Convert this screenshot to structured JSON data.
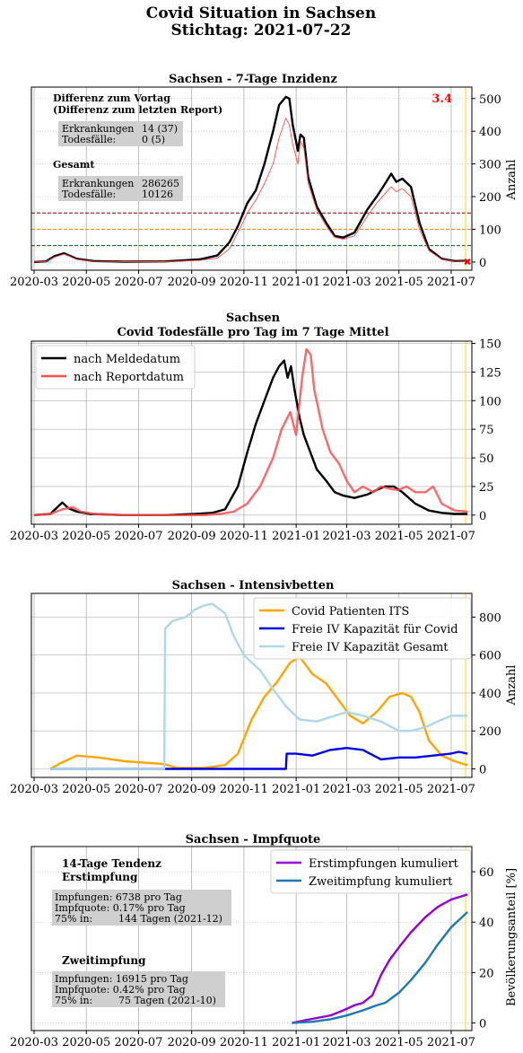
{
  "page": {
    "title_line1": "Covid Situation in Sachsen",
    "title_line2": "Stichtag: 2021-07-22"
  },
  "x_ticks": [
    "2020-03",
    "2020-05",
    "2020-07",
    "2020-09",
    "2020-11",
    "2021-01",
    "2021-03",
    "2021-05",
    "2021-07"
  ],
  "colors": {
    "black": "#000000",
    "red": "#ff4d4d",
    "orange": "#ffa500",
    "blue": "#0000e6",
    "lightblue": "#add8e6",
    "purple": "#9400d3",
    "steel": "#1f77b4",
    "gold": "#ffd700"
  },
  "chart_data": [
    {
      "type": "line",
      "title": "Sachsen - 7-Tage Inzidenz",
      "ylabel": "Anzahl",
      "ylim": [
        -25,
        535
      ],
      "yticks": [
        "0",
        "100",
        "200",
        "300",
        "400",
        "500"
      ],
      "highlight_value": "3.4",
      "thresholds": [
        {
          "value": 150,
          "color": "#8b0000"
        },
        {
          "value": 100,
          "color": "#ff8c00"
        },
        {
          "value": 50,
          "color": "#006400"
        }
      ],
      "info": {
        "heading1": "Differenz zum Vortag",
        "heading2": "(Differenz zum letzten Report)",
        "erkr_label": "Erkrankungen",
        "erkr_value": "14 (37)",
        "tod_label": "Todesfälle:",
        "tod_value": "0 (5)",
        "gesamt": "Gesamt",
        "g_erkr_label": "Erkrankungen",
        "g_erkr_value": "286265",
        "g_tod_label": "Todesfälle:",
        "g_tod_value": "10126"
      },
      "series": [
        {
          "color": "#000000",
          "x": [
            "2020-03-01",
            "2020-03-15",
            "2020-03-25",
            "2020-04-05",
            "2020-04-20",
            "2020-05-10",
            "2020-06-15",
            "2020-08-01",
            "2020-09-10",
            "2020-10-01",
            "2020-10-15",
            "2020-10-25",
            "2020-11-05",
            "2020-11-15",
            "2020-11-25",
            "2020-12-05",
            "2020-12-12",
            "2020-12-20",
            "2020-12-24",
            "2020-12-28",
            "2021-01-03",
            "2021-01-06",
            "2021-01-10",
            "2021-01-15",
            "2021-01-25",
            "2021-02-05",
            "2021-02-15",
            "2021-02-25",
            "2021-03-10",
            "2021-03-25",
            "2021-04-05",
            "2021-04-15",
            "2021-04-22",
            "2021-04-28",
            "2021-05-05",
            "2021-05-15",
            "2021-05-25",
            "2021-06-05",
            "2021-06-20",
            "2021-07-05",
            "2021-07-20"
          ],
          "y": [
            0,
            2,
            18,
            27,
            10,
            3,
            1,
            2,
            8,
            20,
            60,
            110,
            180,
            220,
            300,
            400,
            480,
            505,
            500,
            420,
            340,
            390,
            380,
            260,
            170,
            120,
            80,
            75,
            90,
            160,
            200,
            240,
            270,
            245,
            255,
            230,
            120,
            40,
            10,
            3,
            4
          ]
        },
        {
          "color": "#ff4d4d",
          "x": [
            "2020-03-01",
            "2020-03-15",
            "2020-03-25",
            "2020-04-05",
            "2020-04-20",
            "2020-05-10",
            "2020-06-15",
            "2020-08-01",
            "2020-09-10",
            "2020-10-01",
            "2020-10-15",
            "2020-10-25",
            "2020-11-05",
            "2020-11-15",
            "2020-11-25",
            "2020-12-05",
            "2020-12-12",
            "2020-12-20",
            "2020-12-24",
            "2020-12-28",
            "2021-01-03",
            "2021-01-06",
            "2021-01-10",
            "2021-01-15",
            "2021-01-25",
            "2021-02-05",
            "2021-02-15",
            "2021-02-25",
            "2021-03-10",
            "2021-03-25",
            "2021-04-05",
            "2021-04-15",
            "2021-04-22",
            "2021-04-28",
            "2021-05-05",
            "2021-05-15",
            "2021-05-25",
            "2021-06-05",
            "2021-06-20",
            "2021-07-05",
            "2021-07-20"
          ],
          "y": [
            0,
            1,
            15,
            24,
            8,
            2,
            1,
            1,
            5,
            12,
            40,
            90,
            150,
            190,
            240,
            300,
            380,
            440,
            420,
            360,
            300,
            370,
            350,
            240,
            160,
            110,
            75,
            70,
            80,
            140,
            180,
            210,
            230,
            215,
            225,
            200,
            100,
            35,
            8,
            2,
            3
          ]
        }
      ]
    },
    {
      "type": "line",
      "title_line1": "Sachsen",
      "title_line2": "Covid Todesfälle pro Tag im 7 Tage Mittel",
      "ylim": [
        -8,
        152
      ],
      "yticks": [
        "0",
        "25",
        "50",
        "75",
        "100",
        "125",
        "150"
      ],
      "series": [
        {
          "name": "nach Meldedatum",
          "color": "#000000",
          "x": [
            "2020-03-01",
            "2020-03-20",
            "2020-04-03",
            "2020-04-10",
            "2020-04-20",
            "2020-05-05",
            "2020-06-15",
            "2020-08-01",
            "2020-09-05",
            "2020-09-25",
            "2020-10-10",
            "2020-10-25",
            "2020-11-05",
            "2020-11-15",
            "2020-11-25",
            "2020-12-05",
            "2020-12-12",
            "2020-12-18",
            "2020-12-22",
            "2020-12-26",
            "2020-12-30",
            "2021-01-05",
            "2021-01-10",
            "2021-01-15",
            "2021-01-25",
            "2021-02-05",
            "2021-02-15",
            "2021-02-25",
            "2021-03-10",
            "2021-03-25",
            "2021-04-05",
            "2021-04-15",
            "2021-04-25",
            "2021-05-05",
            "2021-05-20",
            "2021-06-05",
            "2021-06-20",
            "2021-07-05",
            "2021-07-20"
          ],
          "y": [
            0,
            1,
            11,
            6,
            3,
            1,
            0,
            0,
            1,
            2,
            5,
            25,
            55,
            80,
            100,
            120,
            130,
            135,
            120,
            130,
            110,
            85,
            70,
            60,
            40,
            30,
            20,
            17,
            15,
            18,
            22,
            25,
            25,
            20,
            10,
            4,
            2,
            1,
            1
          ]
        },
        {
          "name": "nach Reportdatum",
          "color": "#ff4d4d",
          "x": [
            "2020-03-01",
            "2020-03-20",
            "2020-04-03",
            "2020-04-15",
            "2020-04-25",
            "2020-05-10",
            "2020-06-15",
            "2020-08-01",
            "2020-09-15",
            "2020-10-05",
            "2020-10-20",
            "2020-11-05",
            "2020-11-20",
            "2020-12-05",
            "2020-12-15",
            "2020-12-25",
            "2021-01-01",
            "2021-01-08",
            "2021-01-13",
            "2021-01-18",
            "2021-01-22",
            "2021-02-01",
            "2021-02-10",
            "2021-02-20",
            "2021-03-01",
            "2021-03-10",
            "2021-03-20",
            "2021-04-01",
            "2021-04-10",
            "2021-04-20",
            "2021-04-30",
            "2021-05-10",
            "2021-05-20",
            "2021-06-01",
            "2021-06-10",
            "2021-06-20",
            "2021-07-05",
            "2021-07-20"
          ],
          "y": [
            0,
            1,
            5,
            7,
            3,
            1,
            0,
            0,
            0,
            1,
            3,
            10,
            25,
            50,
            75,
            90,
            70,
            120,
            145,
            140,
            110,
            75,
            55,
            45,
            30,
            20,
            25,
            20,
            25,
            23,
            22,
            25,
            20,
            20,
            25,
            10,
            4,
            3
          ]
        }
      ]
    },
    {
      "type": "line",
      "title": "Sachsen - Intensivbetten",
      "ylabel": "Anzahl",
      "ylim": [
        -45,
        925
      ],
      "yticks": [
        "0",
        "200",
        "400",
        "600",
        "800"
      ],
      "series": [
        {
          "name": "Covid Patienten ITS",
          "color": "#ffa500",
          "x": [
            "2020-03-20",
            "2020-04-01",
            "2020-04-20",
            "2020-05-15",
            "2020-06-15",
            "2020-07-15",
            "2020-07-31",
            "2020-08-15",
            "2020-09-15",
            "2020-10-10",
            "2020-10-25",
            "2020-11-10",
            "2020-11-25",
            "2020-12-10",
            "2020-12-25",
            "2021-01-05",
            "2021-01-20",
            "2021-02-05",
            "2021-02-20",
            "2021-03-05",
            "2021-03-20",
            "2021-04-05",
            "2021-04-20",
            "2021-05-05",
            "2021-05-15",
            "2021-05-25",
            "2021-06-05",
            "2021-06-20",
            "2021-07-05",
            "2021-07-20"
          ],
          "y": [
            0,
            30,
            70,
            60,
            40,
            30,
            25,
            5,
            5,
            20,
            80,
            260,
            380,
            460,
            560,
            590,
            500,
            450,
            360,
            280,
            240,
            300,
            380,
            400,
            380,
            300,
            150,
            70,
            40,
            20
          ]
        },
        {
          "name": "Freie IV Kapazität für Covid",
          "color": "#0000e6",
          "x": [
            "2020-03-20",
            "2020-07-31",
            "2020-08-01",
            "2020-12-20",
            "2020-12-21",
            "2021-01-01",
            "2021-01-20",
            "2021-02-10",
            "2021-03-01",
            "2021-03-20",
            "2021-04-10",
            "2021-05-01",
            "2021-05-20",
            "2021-06-10",
            "2021-06-30",
            "2021-07-10",
            "2021-07-20"
          ],
          "y": [
            0,
            0,
            0,
            0,
            80,
            80,
            70,
            100,
            110,
            100,
            50,
            60,
            60,
            70,
            80,
            90,
            80
          ]
        },
        {
          "name": "Freie IV Kapazität Gesamt",
          "color": "#add8e6",
          "x": [
            "2020-03-20",
            "2020-07-31",
            "2020-08-01",
            "2020-08-10",
            "2020-08-25",
            "2020-09-05",
            "2020-09-15",
            "2020-09-25",
            "2020-10-10",
            "2020-10-20",
            "2020-11-01",
            "2020-11-10",
            "2020-11-20",
            "2020-12-05",
            "2020-12-20",
            "2021-01-05",
            "2021-01-25",
            "2021-02-15",
            "2021-03-01",
            "2021-03-20",
            "2021-04-10",
            "2021-05-01",
            "2021-05-15",
            "2021-06-01",
            "2021-06-15",
            "2021-07-01",
            "2021-07-20"
          ],
          "y": [
            0,
            0,
            740,
            780,
            800,
            840,
            860,
            870,
            820,
            700,
            600,
            560,
            520,
            420,
            330,
            260,
            250,
            280,
            300,
            280,
            250,
            200,
            200,
            220,
            250,
            280,
            280
          ]
        }
      ]
    },
    {
      "type": "line",
      "title": "Sachsen - Impfquote",
      "ylabel": "Bevölkerungsanteil [%]",
      "ylim": [
        -3,
        70
      ],
      "yticks": [
        "0",
        "20",
        "40",
        "60"
      ],
      "info": {
        "t1_heading1": "14-Tage Tendenz",
        "t1_heading2": "Erstimpfung",
        "t1_row1": "Impfungen: 6738 pro Tag",
        "t1_row2": "Impfquote:  0.17% pro Tag",
        "t1_row3_label": "75% in:",
        "t1_row3_value": "144 Tagen (2021-12)",
        "t2_heading": "Zweitimpfung",
        "t2_row1": "Impfungen: 16915 pro Tag",
        "t2_row2": "Impfquote:  0.42% pro Tag",
        "t2_row3_label": "75% in:",
        "t2_row3_value": "75 Tagen (2021-10)"
      },
      "series": [
        {
          "name": "Erstimpfungen kumuliert",
          "color": "#9400d3",
          "x": [
            "2020-12-27",
            "2021-01-10",
            "2021-01-25",
            "2021-02-10",
            "2021-02-25",
            "2021-03-10",
            "2021-03-20",
            "2021-03-31",
            "2021-04-10",
            "2021-04-20",
            "2021-05-01",
            "2021-05-15",
            "2021-06-01",
            "2021-06-15",
            "2021-07-01",
            "2021-07-20"
          ],
          "y": [
            0,
            1,
            2,
            3,
            5,
            7,
            8,
            11,
            19,
            25,
            30,
            36,
            42,
            46,
            49,
            51
          ]
        },
        {
          "name": "Zweitimpfung kumuliert",
          "color": "#1f77b4",
          "x": [
            "2020-12-27",
            "2021-01-20",
            "2021-02-10",
            "2021-03-01",
            "2021-03-20",
            "2021-04-05",
            "2021-04-15",
            "2021-05-01",
            "2021-05-15",
            "2021-06-01",
            "2021-06-15",
            "2021-07-01",
            "2021-07-20"
          ],
          "y": [
            0,
            0.5,
            1.5,
            3,
            5,
            7,
            8,
            12,
            17,
            24,
            31,
            38,
            44
          ]
        }
      ]
    }
  ]
}
